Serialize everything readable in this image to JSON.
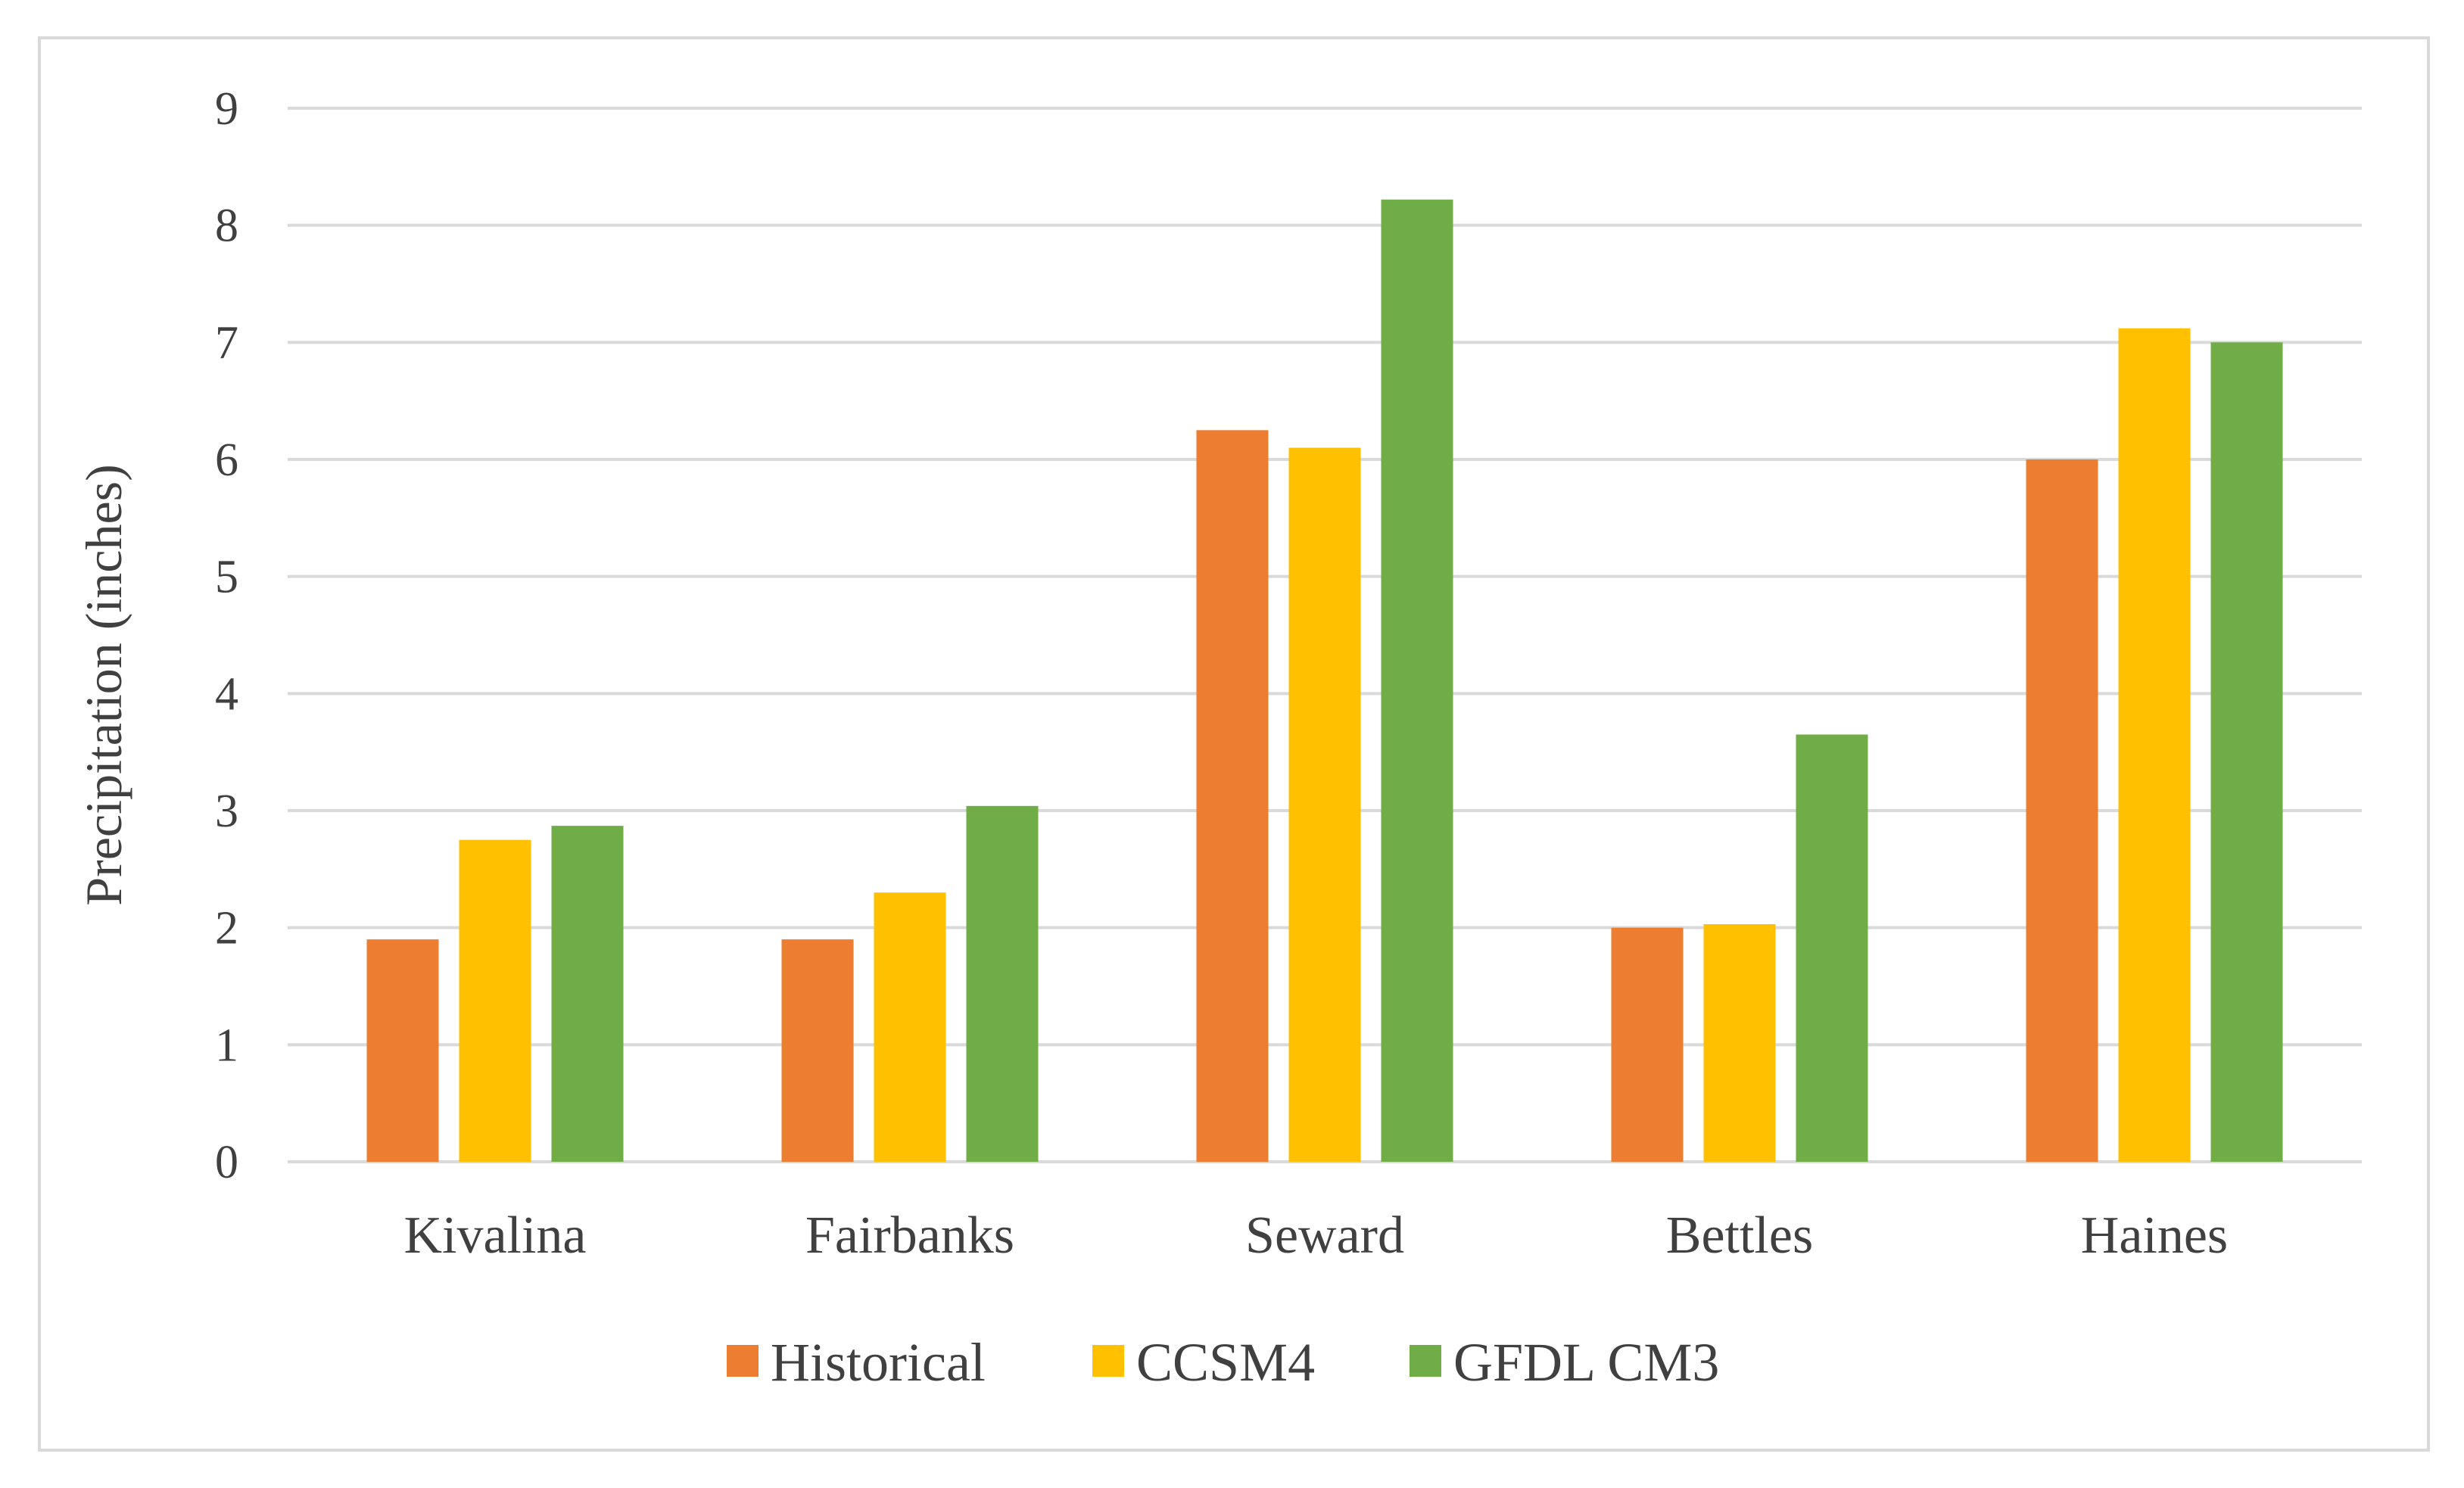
{
  "colors": {
    "historical": "#ed7d31",
    "ccsm4": "#ffc000",
    "gfdl_cm3": "#70ad47",
    "grid": "#d9d9d9",
    "text": "#404040"
  },
  "chart_data": {
    "type": "bar",
    "title": "",
    "xlabel": "",
    "ylabel": "Precipitation (inches)",
    "ylim": [
      0,
      9
    ],
    "yticks": [
      0,
      1,
      2,
      3,
      4,
      5,
      6,
      7,
      8,
      9
    ],
    "grid": true,
    "legend_position": "bottom",
    "categories": [
      "Kivalina",
      "Fairbanks",
      "Seward",
      "Bettles",
      "Haines"
    ],
    "series": [
      {
        "name": "Historical",
        "color_key": "historical",
        "values": [
          1.9,
          1.9,
          6.25,
          2.0,
          6.0
        ]
      },
      {
        "name": "CCSM4",
        "color_key": "ccsm4",
        "values": [
          2.75,
          2.3,
          6.1,
          2.03,
          7.12
        ]
      },
      {
        "name": "GFDL CM3",
        "color_key": "gfdl_cm3",
        "values": [
          2.87,
          3.04,
          8.22,
          3.65,
          7.0
        ]
      }
    ]
  }
}
